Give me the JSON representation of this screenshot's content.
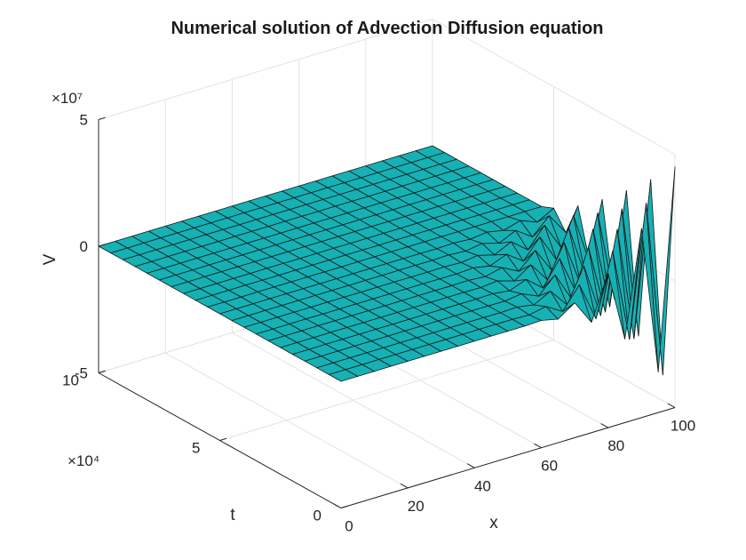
{
  "chart_data": {
    "type": "surface",
    "title": "Numerical solution of Advection Diffusion equation",
    "xlabel": "x",
    "ylabel": "t",
    "zlabel": "V",
    "xlim": [
      0,
      100
    ],
    "ylim": [
      0,
      100000
    ],
    "zlim": [
      -50000000,
      50000000
    ],
    "x_ticks": [
      "0",
      "20",
      "40",
      "60",
      "80",
      "100"
    ],
    "y_ticks": [
      "0",
      "5",
      "10"
    ],
    "y_exponent": "×10⁴",
    "z_ticks": [
      "-5",
      "0",
      "5"
    ],
    "z_exponent": "×10⁷",
    "grid": true,
    "colormap": "parula",
    "x": [
      0,
      5,
      10,
      15,
      20,
      25,
      30,
      35,
      40,
      45,
      50,
      55,
      60,
      65,
      70,
      75,
      80,
      85,
      90,
      95,
      100
    ],
    "t": [
      0,
      5000,
      10000,
      15000,
      20000,
      25000,
      30000,
      35000,
      40000,
      45000,
      50000,
      55000,
      60000,
      65000,
      70000,
      75000,
      80000,
      85000,
      90000,
      95000,
      100000
    ],
    "V_description_values": {
      "base_level": 0,
      "max_peak": 45000000,
      "min_trough": -45000000
    }
  }
}
